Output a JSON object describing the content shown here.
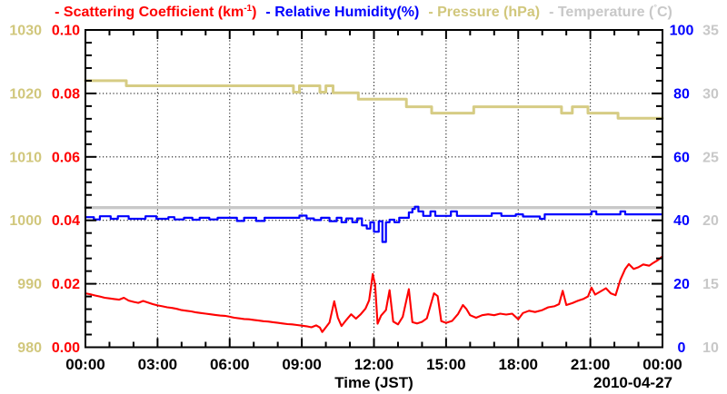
{
  "page": {
    "background": "#ffffff"
  },
  "colors": {
    "scattering": "#ff0000",
    "humidity": "#0000ff",
    "pressure": "#d1c77c",
    "temperature": "#c8c8c8",
    "frame": "#000000",
    "grid": "#1a1a1a",
    "x_labels": "#000000"
  },
  "legend": {
    "items": [
      {
        "pre": "- Scattering Coefficient (km",
        "sup": "-1",
        "post": ")",
        "color": "#ff0000"
      },
      {
        "text": "- Relative Humidity(%)",
        "color": "#0000ff"
      },
      {
        "text": "- Pressure (hPa)",
        "color": "#d1c77c"
      },
      {
        "pre": "- Temperature (",
        "deg": "°",
        "post": "C)",
        "color": "#c8c8c8"
      }
    ]
  },
  "chart_data": {
    "type": "line",
    "title": "Scattering Coefficient, Relative Humidity, Pressure and Temperature time series",
    "x_axis": {
      "label": "Time (JST)",
      "date_annotation": "2010-04-27",
      "range_hours": [
        0,
        24
      ],
      "major_tick_interval_h": 3,
      "minor_tick_interval_h": 1,
      "tick_labels": [
        "00:00",
        "03:00",
        "06:00",
        "09:00",
        "12:00",
        "15:00",
        "18:00",
        "21:00",
        "00:00"
      ],
      "grid": true
    },
    "y_axes": [
      {
        "id": "scattering",
        "label": "Scattering Coefficient (km-1)",
        "color": "#ff0000",
        "range": [
          0.0,
          0.1
        ],
        "tick_labels": [
          "0.10",
          "0.08",
          "0.06",
          "0.04",
          "0.02",
          "0.00"
        ]
      },
      {
        "id": "humidity",
        "label": "Relative Humidity(%)",
        "color": "#0000ff",
        "range": [
          0,
          100
        ],
        "tick_labels": [
          "100",
          "80",
          "60",
          "40",
          "20",
          "0"
        ]
      },
      {
        "id": "pressure",
        "label": "Pressure (hPa)",
        "color": "#d1c77c",
        "range": [
          980,
          1030
        ],
        "tick_labels": [
          "1030",
          "1020",
          "1010",
          "1000",
          "990",
          "980"
        ]
      },
      {
        "id": "temperature",
        "label": "Temperature (C)",
        "color": "#c8c8c8",
        "range": [
          10,
          35
        ],
        "tick_labels": [
          "35",
          "30",
          "25",
          "20",
          "15",
          "10"
        ]
      }
    ],
    "grid": {
      "style": "dotted",
      "vertical_at_hours": [
        3,
        6,
        9,
        12,
        15,
        18,
        21
      ],
      "horizontal_at_fractions": [
        0.2,
        0.4,
        0.6,
        0.8
      ]
    },
    "series": [
      {
        "name": "Temperature",
        "axis": "temperature",
        "color": "#c8c8c8",
        "width": 3.4,
        "step": false,
        "points": [
          [
            0,
            21.0
          ],
          [
            24,
            21.0
          ]
        ]
      },
      {
        "name": "Pressure",
        "axis": "pressure",
        "color": "#d6cc84",
        "width": 3.0,
        "step": true,
        "points": [
          [
            0,
            1022.0
          ],
          [
            1.7,
            1021.2
          ],
          [
            8.65,
            1020.2
          ],
          [
            8.9,
            1021.2
          ],
          [
            9.75,
            1020.2
          ],
          [
            10.0,
            1021.2
          ],
          [
            10.3,
            1020.1
          ],
          [
            11.35,
            1019.1
          ],
          [
            13.35,
            1017.9
          ],
          [
            14.4,
            1016.9
          ],
          [
            16.15,
            1017.9
          ],
          [
            19.8,
            1016.9
          ],
          [
            20.25,
            1017.9
          ],
          [
            20.9,
            1016.9
          ],
          [
            22.15,
            1016.1
          ],
          [
            24,
            1016.1
          ]
        ]
      },
      {
        "name": "Relative Humidity",
        "axis": "humidity",
        "color": "#0000ff",
        "width": 2.2,
        "step": true,
        "points": [
          [
            0,
            41.0
          ],
          [
            0.35,
            40.3
          ],
          [
            0.6,
            41.3
          ],
          [
            1.05,
            40.5
          ],
          [
            1.35,
            41.3
          ],
          [
            1.8,
            40.5
          ],
          [
            2.5,
            41.3
          ],
          [
            2.95,
            40.5
          ],
          [
            3.45,
            41.0
          ],
          [
            3.7,
            40.3
          ],
          [
            4.1,
            40.8
          ],
          [
            4.45,
            40.2
          ],
          [
            4.75,
            40.8
          ],
          [
            5.15,
            40.3
          ],
          [
            5.5,
            40.8
          ],
          [
            6.3,
            39.8
          ],
          [
            6.6,
            40.8
          ],
          [
            7.1,
            39.8
          ],
          [
            7.45,
            40.8
          ],
          [
            8.9,
            41.5
          ],
          [
            9.2,
            40.6
          ],
          [
            9.5,
            40.1
          ],
          [
            9.8,
            40.8
          ],
          [
            10.15,
            39.7
          ],
          [
            10.45,
            40.8
          ],
          [
            10.65,
            39.4
          ],
          [
            10.85,
            40.6
          ],
          [
            11.1,
            39.4
          ],
          [
            11.3,
            40.6
          ],
          [
            11.5,
            38.4
          ],
          [
            11.7,
            37.4
          ],
          [
            11.85,
            39.4
          ],
          [
            12.0,
            36.4
          ],
          [
            12.2,
            39.7
          ],
          [
            12.35,
            33.2
          ],
          [
            12.5,
            39.4
          ],
          [
            12.65,
            40.2
          ],
          [
            12.85,
            39.4
          ],
          [
            13.05,
            40.8
          ],
          [
            13.45,
            42.5
          ],
          [
            13.6,
            43.6
          ],
          [
            13.7,
            44.3
          ],
          [
            13.85,
            42.8
          ],
          [
            14.05,
            41.4
          ],
          [
            14.35,
            42.8
          ],
          [
            14.55,
            41.4
          ],
          [
            15.2,
            42.8
          ],
          [
            15.45,
            41.4
          ],
          [
            16.9,
            42.2
          ],
          [
            17.3,
            41.4
          ],
          [
            17.9,
            41.9
          ],
          [
            18.2,
            41.2
          ],
          [
            18.9,
            40.5
          ],
          [
            19.1,
            41.9
          ],
          [
            21.05,
            42.8
          ],
          [
            21.25,
            41.9
          ],
          [
            22.25,
            42.8
          ],
          [
            22.45,
            41.9
          ],
          [
            24,
            41.9
          ]
        ]
      },
      {
        "name": "Scattering Coefficient",
        "axis": "scattering",
        "color": "#ff0000",
        "width": 2.1,
        "step": false,
        "points": [
          [
            0,
            0.017
          ],
          [
            0.2,
            0.0167
          ],
          [
            0.4,
            0.0163
          ],
          [
            0.6,
            0.016
          ],
          [
            0.8,
            0.0156
          ],
          [
            1.0,
            0.0154
          ],
          [
            1.2,
            0.0152
          ],
          [
            1.4,
            0.015
          ],
          [
            1.6,
            0.0156
          ],
          [
            1.8,
            0.0147
          ],
          [
            2.0,
            0.0143
          ],
          [
            2.2,
            0.014
          ],
          [
            2.4,
            0.0146
          ],
          [
            2.6,
            0.0141
          ],
          [
            2.8,
            0.0136
          ],
          [
            3.0,
            0.0132
          ],
          [
            3.2,
            0.0129
          ],
          [
            3.4,
            0.0126
          ],
          [
            3.6,
            0.0124
          ],
          [
            3.8,
            0.0121
          ],
          [
            4.0,
            0.0117
          ],
          [
            4.2,
            0.0115
          ],
          [
            4.4,
            0.0113
          ],
          [
            4.6,
            0.011
          ],
          [
            4.8,
            0.0108
          ],
          [
            5.0,
            0.0106
          ],
          [
            5.2,
            0.0104
          ],
          [
            5.4,
            0.0102
          ],
          [
            5.6,
            0.01
          ],
          [
            5.8,
            0.0099
          ],
          [
            6.0,
            0.0096
          ],
          [
            6.2,
            0.0093
          ],
          [
            6.4,
            0.0091
          ],
          [
            6.6,
            0.0089
          ],
          [
            6.8,
            0.0088
          ],
          [
            7.0,
            0.0086
          ],
          [
            7.2,
            0.0084
          ],
          [
            7.4,
            0.0082
          ],
          [
            7.6,
            0.0081
          ],
          [
            7.8,
            0.0079
          ],
          [
            8.0,
            0.0077
          ],
          [
            8.2,
            0.0075
          ],
          [
            8.4,
            0.0073
          ],
          [
            8.6,
            0.0072
          ],
          [
            8.8,
            0.007
          ],
          [
            9.0,
            0.0068
          ],
          [
            9.2,
            0.0066
          ],
          [
            9.4,
            0.0063
          ],
          [
            9.6,
            0.0069
          ],
          [
            9.75,
            0.0062
          ],
          [
            9.85,
            0.0048
          ],
          [
            10.0,
            0.0063
          ],
          [
            10.15,
            0.0078
          ],
          [
            10.35,
            0.0145
          ],
          [
            10.5,
            0.0093
          ],
          [
            10.65,
            0.0067
          ],
          [
            10.85,
            0.0086
          ],
          [
            11.05,
            0.0104
          ],
          [
            11.25,
            0.009
          ],
          [
            11.45,
            0.0104
          ],
          [
            11.65,
            0.0122
          ],
          [
            11.8,
            0.0148
          ],
          [
            11.95,
            0.0231
          ],
          [
            12.05,
            0.0196
          ],
          [
            12.15,
            0.0074
          ],
          [
            12.3,
            0.01
          ],
          [
            12.5,
            0.0117
          ],
          [
            12.65,
            0.018
          ],
          [
            12.8,
            0.0081
          ],
          [
            13.0,
            0.0072
          ],
          [
            13.2,
            0.0096
          ],
          [
            13.45,
            0.0183
          ],
          [
            13.6,
            0.0079
          ],
          [
            13.8,
            0.0075
          ],
          [
            14.0,
            0.008
          ],
          [
            14.2,
            0.0091
          ],
          [
            14.5,
            0.017
          ],
          [
            14.65,
            0.0161
          ],
          [
            14.8,
            0.0082
          ],
          [
            15.0,
            0.0077
          ],
          [
            15.25,
            0.0083
          ],
          [
            15.5,
            0.0105
          ],
          [
            15.7,
            0.0133
          ],
          [
            15.85,
            0.012
          ],
          [
            16.0,
            0.0101
          ],
          [
            16.25,
            0.0093
          ],
          [
            16.5,
            0.0101
          ],
          [
            16.75,
            0.0104
          ],
          [
            17.0,
            0.0101
          ],
          [
            17.25,
            0.0106
          ],
          [
            17.5,
            0.0103
          ],
          [
            17.75,
            0.0106
          ],
          [
            18.0,
            0.0088
          ],
          [
            18.2,
            0.0108
          ],
          [
            18.45,
            0.0115
          ],
          [
            18.7,
            0.0111
          ],
          [
            19.0,
            0.0117
          ],
          [
            19.25,
            0.0126
          ],
          [
            19.5,
            0.0129
          ],
          [
            19.7,
            0.0136
          ],
          [
            19.85,
            0.0178
          ],
          [
            20.0,
            0.0133
          ],
          [
            20.25,
            0.0139
          ],
          [
            20.5,
            0.0147
          ],
          [
            20.7,
            0.0152
          ],
          [
            20.9,
            0.016
          ],
          [
            21.05,
            0.0188
          ],
          [
            21.2,
            0.0166
          ],
          [
            21.45,
            0.0177
          ],
          [
            21.65,
            0.0186
          ],
          [
            21.85,
            0.017
          ],
          [
            22.05,
            0.0164
          ],
          [
            22.25,
            0.0213
          ],
          [
            22.45,
            0.0247
          ],
          [
            22.6,
            0.0262
          ],
          [
            22.8,
            0.0247
          ],
          [
            23.0,
            0.0252
          ],
          [
            23.2,
            0.0261
          ],
          [
            23.45,
            0.0257
          ],
          [
            23.6,
            0.0265
          ],
          [
            23.8,
            0.0274
          ],
          [
            24,
            0.0286
          ]
        ]
      }
    ]
  }
}
